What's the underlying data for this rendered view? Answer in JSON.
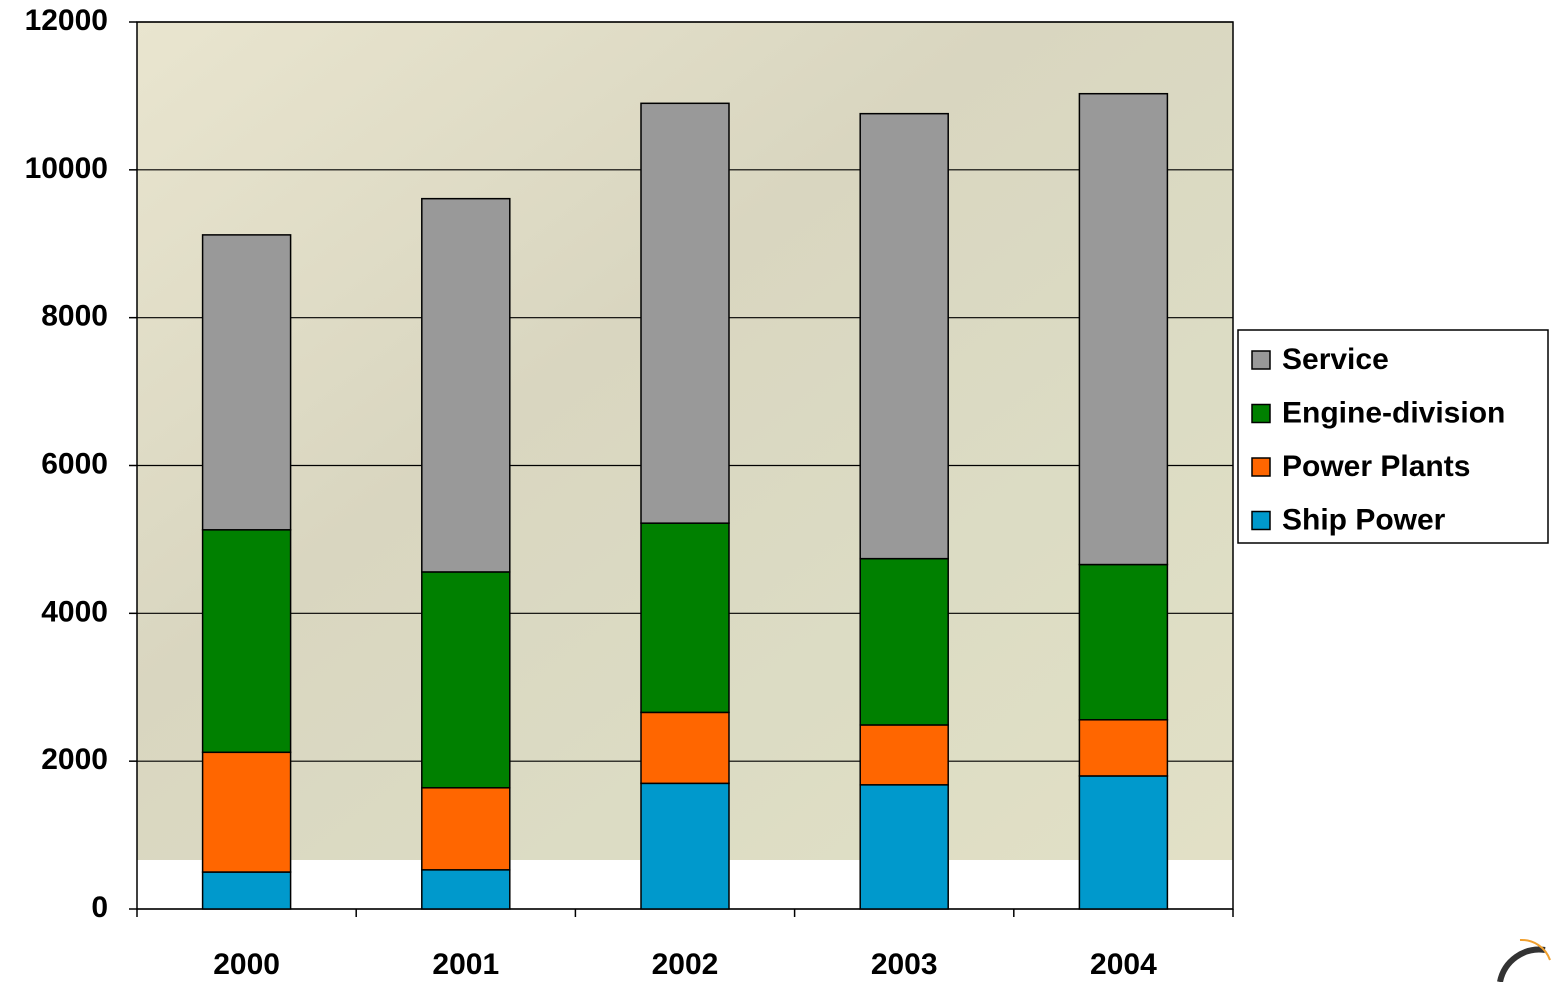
{
  "chart_data": {
    "type": "stacked-bar",
    "categories": [
      "2000",
      "2001",
      "2002",
      "2003",
      "2004"
    ],
    "series": [
      {
        "name": "Ship Power",
        "color": "#0099cc",
        "values": [
          500,
          530,
          1700,
          1680,
          1800
        ]
      },
      {
        "name": "Power Plants",
        "color": "#ff6600",
        "values": [
          1620,
          1110,
          960,
          810,
          760
        ]
      },
      {
        "name": "Engine-division",
        "color": "#008000",
        "values": [
          3010,
          2920,
          2560,
          2250,
          2100
        ]
      },
      {
        "name": "Service",
        "color": "#999999",
        "values": [
          3990,
          5050,
          5680,
          6020,
          6370
        ]
      }
    ],
    "ylim": [
      0,
      12000
    ],
    "yticks": [
      0,
      2000,
      4000,
      6000,
      8000,
      10000,
      12000
    ],
    "grid": true,
    "legend": "right"
  }
}
